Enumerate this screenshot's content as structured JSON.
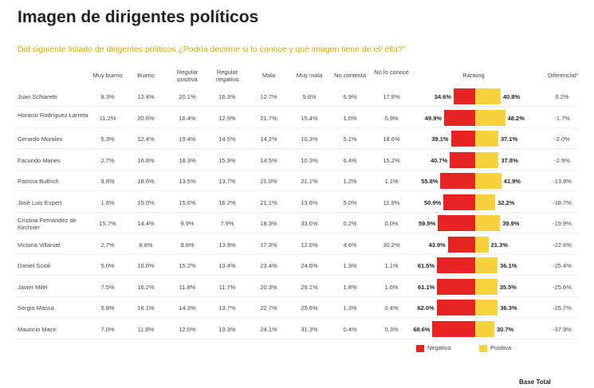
{
  "title": "Imagen de dirigentes políticos",
  "subtitle": "Del siguiente listado de dirigentes políticos ¿Podría decirme si lo conoce y qué imagen tiene de el/ ella?\"",
  "headers": {
    "muy_bueno": "Muy bueno",
    "bueno": "Bueno",
    "regular_positiva": "Regular positiva",
    "regular_negativa": "Regular negativa",
    "mala": "Mala",
    "muy_mala": "Muy mala",
    "no_contesta": "No contesta",
    "no_lo_conoce": "No lo conoce",
    "ranking": "Ranking",
    "diferencial": "Diferencial*"
  },
  "legend": {
    "negativa": "Negativa",
    "positiva": "Positiva"
  },
  "footer": {
    "base_total": "Base Total"
  },
  "colors": {
    "negativa": "#e62423",
    "positiva": "#f9d13d",
    "subtitle": "#e8a200"
  },
  "chart_data": {
    "type": "bar",
    "title": "Imagen de dirigentes políticos",
    "categories": [
      "Juan Schiaretti",
      "Horacio Rodríguez Larreta",
      "Gerardo Morales",
      "Facundo Manes",
      "Patricia Bullrich",
      "José Luis Espert",
      "Cristina Fernández de Kirchner",
      "Victoria Villaruel",
      "Daniel Scioli",
      "Javier Milei",
      "Sergio Massa",
      "Mauricio Macri"
    ],
    "series": [
      {
        "name": "Negativa",
        "values": [
          34.6,
          49.9,
          39.1,
          40.7,
          55.8,
          50.9,
          59.9,
          43.9,
          61.5,
          61.1,
          62.0,
          68.6
        ]
      },
      {
        "name": "Positiva",
        "values": [
          40.8,
          48.2,
          37.1,
          37.8,
          41.9,
          32.2,
          39.9,
          21.3,
          36.1,
          35.5,
          36.3,
          30.7
        ]
      }
    ]
  },
  "table": {
    "rows": [
      {
        "name": "Juan Schiaretti",
        "muy_bueno": "8.3%",
        "bueno": "12.4%",
        "regular_positiva": "20.1%",
        "regular_negativa": "16.3%",
        "mala": "12.7%",
        "muy_mala": "5.6%",
        "no_contesta": "6.9%",
        "no_lo_conoce": "17.8%",
        "negativa": "34.6%",
        "positiva": "40.8%",
        "diferencial": "6.2%"
      },
      {
        "name": "Horacio Rodríguez Larreta",
        "muy_bueno": "11.2%",
        "bueno": "20.6%",
        "regular_positiva": "16.4%",
        "regular_negativa": "12.9%",
        "mala": "21.7%",
        "muy_mala": "15.4%",
        "no_contesta": "1.0%",
        "no_lo_conoce": "0.9%",
        "negativa": "49.9%",
        "positiva": "48.2%",
        "diferencial": "-1.7%"
      },
      {
        "name": "Gerardo Morales",
        "muy_bueno": "5.3%",
        "bueno": "12.4%",
        "regular_positiva": "19.4%",
        "regular_negativa": "14.5%",
        "mala": "14.2%",
        "muy_mala": "10.3%",
        "no_contesta": "5.1%",
        "no_lo_conoce": "18.6%",
        "negativa": "39.1%",
        "positiva": "37.1%",
        "diferencial": "-2.0%"
      },
      {
        "name": "Facundo Manes",
        "muy_bueno": "2.7%",
        "bueno": "16.8%",
        "regular_positiva": "18.3%",
        "regular_negativa": "15.9%",
        "mala": "14.5%",
        "muy_mala": "10.3%",
        "no_contesta": "6.4%",
        "no_lo_conoce": "15.2%",
        "negativa": "40.7%",
        "positiva": "37.8%",
        "diferencial": "-2.9%"
      },
      {
        "name": "Patricia Bullrich",
        "muy_bueno": "9.8%",
        "bueno": "18.6%",
        "regular_positiva": "13.5%",
        "regular_negativa": "13.7%",
        "mala": "21.0%",
        "muy_mala": "21.1%",
        "no_contesta": "1.2%",
        "no_lo_conoce": "1.1%",
        "negativa": "55.8%",
        "positiva": "41.9%",
        "diferencial": "-13.9%"
      },
      {
        "name": "José Luis Espert",
        "muy_bueno": "1.6%",
        "bueno": "15.0%",
        "regular_positiva": "15.6%",
        "regular_negativa": "16.2%",
        "mala": "21.1%",
        "muy_mala": "13.6%",
        "no_contesta": "5.0%",
        "no_lo_conoce": "11.9%",
        "negativa": "50.9%",
        "positiva": "32.2%",
        "diferencial": "-18.7%"
      },
      {
        "name": "Cristina Fernández de Kirchner",
        "muy_bueno": "15.7%",
        "bueno": "14.4%",
        "regular_positiva": "9.9%",
        "regular_negativa": "7.9%",
        "mala": "18.3%",
        "muy_mala": "33.6%",
        "no_contesta": "0.2%",
        "no_lo_conoce": "0.0%",
        "negativa": "59.9%",
        "positiva": "39.9%",
        "diferencial": "-19.9%"
      },
      {
        "name": "Victoria Villaruel",
        "muy_bueno": "2.7%",
        "bueno": "8.8%",
        "regular_positiva": "9.8%",
        "regular_negativa": "13.9%",
        "mala": "17.3%",
        "muy_mala": "12.6%",
        "no_contesta": "4.6%",
        "no_lo_conoce": "30.2%",
        "negativa": "43.9%",
        "positiva": "21.3%",
        "diferencial": "-22.6%"
      },
      {
        "name": "Daniel Scioli",
        "muy_bueno": "5.0%",
        "bueno": "16.0%",
        "regular_positiva": "15.2%",
        "regular_negativa": "13.4%",
        "mala": "23.4%",
        "muy_mala": "24.6%",
        "no_contesta": "1.3%",
        "no_lo_conoce": "1.1%",
        "negativa": "61.5%",
        "positiva": "36.1%",
        "diferencial": "-25.4%"
      },
      {
        "name": "Javier Milei",
        "muy_bueno": "7.5%",
        "bueno": "16.2%",
        "regular_positiva": "11.8%",
        "regular_negativa": "11.7%",
        "mala": "20.3%",
        "muy_mala": "29.1%",
        "no_contesta": "1.8%",
        "no_lo_conoce": "1.6%",
        "negativa": "61.1%",
        "positiva": "35.5%",
        "diferencial": "-25.6%"
      },
      {
        "name": "Sergio Massa",
        "muy_bueno": "5.8%",
        "bueno": "16.1%",
        "regular_positiva": "14.3%",
        "regular_negativa": "13.7%",
        "mala": "22.7%",
        "muy_mala": "25.6%",
        "no_contesta": "1.3%",
        "no_lo_conoce": "0.4%",
        "negativa": "62.0%",
        "positiva": "36.3%",
        "diferencial": "-25.7%"
      },
      {
        "name": "Mauricio Macri",
        "muy_bueno": "7.0%",
        "bueno": "11.8%",
        "regular_positiva": "12.0%",
        "regular_negativa": "13.3%",
        "mala": "24.1%",
        "muy_mala": "31.3%",
        "no_contesta": "0.4%",
        "no_lo_conoce": "0.3%",
        "negativa": "68.6%",
        "positiva": "30.7%",
        "diferencial": "-37.9%"
      }
    ]
  }
}
